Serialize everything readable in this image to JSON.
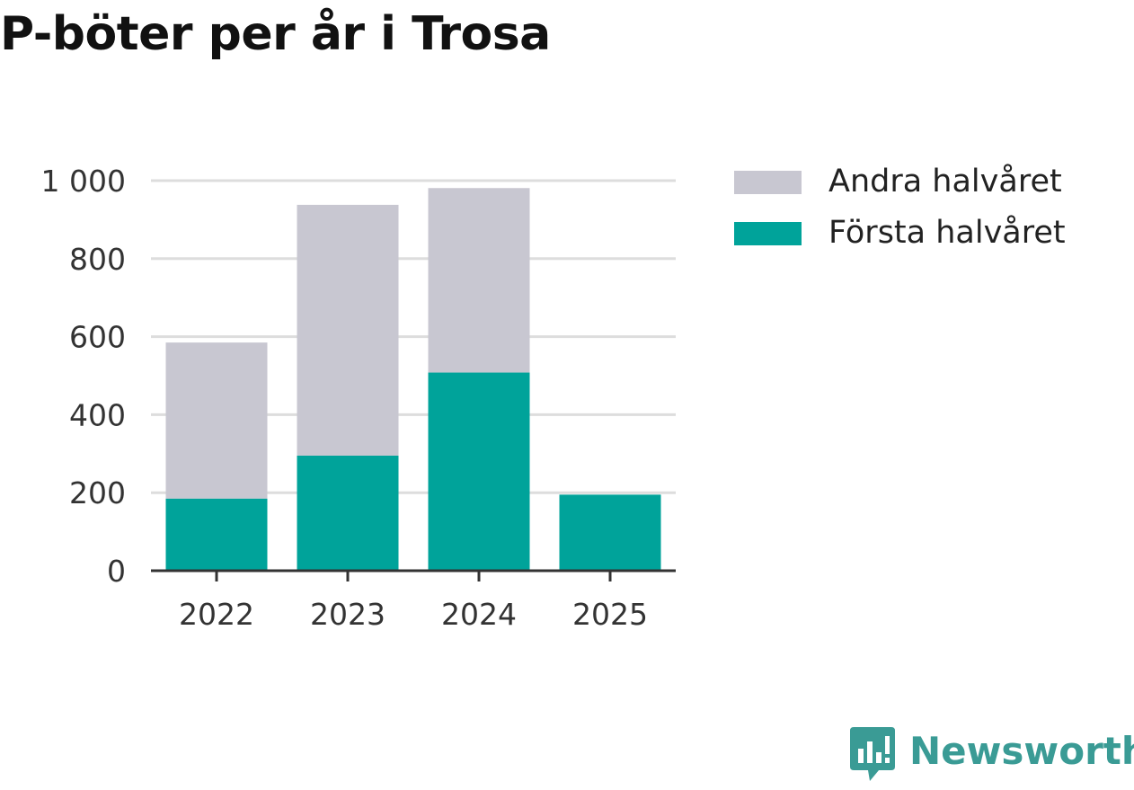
{
  "colors": {
    "forsta": "#00a39a",
    "andra": "#c8c7d1",
    "grid": "#dddddd",
    "axis": "#333333",
    "brand": "#3a9b95"
  },
  "brand": {
    "name": "Newsworthy",
    "icon": "newsworthy-logo-icon"
  },
  "chart_data": {
    "type": "bar",
    "stacked": true,
    "title": "P-böter per år i Trosa",
    "categories": [
      "2022",
      "2023",
      "2024",
      "2025"
    ],
    "series": [
      {
        "name": "Första halvåret",
        "values": [
          185,
          295,
          508,
          195
        ]
      },
      {
        "name": "Andra halvåret",
        "values": [
          400,
          643,
          473,
          0
        ]
      }
    ],
    "ylim": [
      0,
      1000
    ],
    "yticks": [
      0,
      200,
      400,
      600,
      800,
      1000
    ],
    "ytick_labels": [
      "0",
      "200",
      "400",
      "600",
      "800",
      "1 000"
    ],
    "grid": true,
    "legend": "right",
    "legend_entries": [
      "Andra halvåret",
      "Första halvåret"
    ]
  }
}
